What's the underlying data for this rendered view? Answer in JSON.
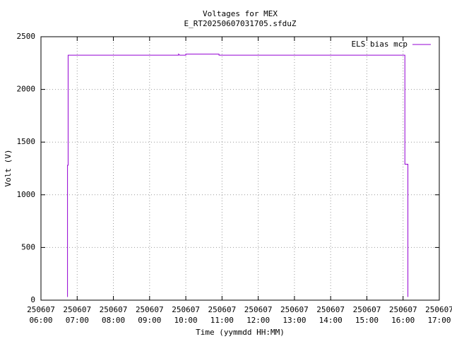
{
  "chart_data": {
    "type": "line",
    "title": "Voltages for MEX",
    "subtitle": "E_RT20250607031705.sfduZ",
    "x_label": "Time (yymmdd HH:MM)",
    "y_label": "Volt (V)",
    "x": [
      "250607 06:44",
      "250607 06:44",
      "250607 06:45",
      "250607 06:45",
      "250607 09:48",
      "250607 09:48",
      "250607 09:50",
      "250607 10:00",
      "250607 10:00",
      "250607 10:55",
      "250607 10:55",
      "250607 16:03",
      "250607 16:03",
      "250607 16:08",
      "250607 16:08"
    ],
    "series": [
      {
        "name": "ELS bias mcp",
        "color": "#9400d3",
        "values": [
          30,
          1280,
          1280,
          2325,
          2325,
          2335,
          2325,
          2325,
          2335,
          2335,
          2325,
          2325,
          1290,
          1290,
          30
        ]
      }
    ],
    "xlim": [
      "250607\n06:00",
      "250607\n17:00"
    ],
    "xticks": [
      "250607\n06:00",
      "250607\n07:00",
      "250607\n08:00",
      "250607\n09:00",
      "250607\n10:00",
      "250607\n11:00",
      "250607\n12:00",
      "250607\n13:00",
      "250607\n14:00",
      "250607\n15:00",
      "250607\n16:00",
      "250607\n17:00"
    ],
    "ylim": [
      0,
      2500
    ],
    "yticks": [
      0,
      500,
      1000,
      1500,
      2000,
      2500
    ],
    "grid": true,
    "legend": "top-right"
  }
}
